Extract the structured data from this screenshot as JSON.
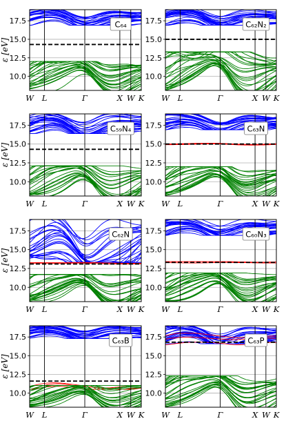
{
  "figure": {
    "ylabel": "ε [eV]"
  },
  "chart_data": [
    {
      "type": "line",
      "label": "C₆₄",
      "fermi": 14.3,
      "ylim": [
        8.1,
        19.0
      ],
      "yticks": [
        "10.0",
        "12.5",
        "15.0",
        "17.5"
      ],
      "high_symmetry": [
        "W",
        "L",
        "Γ",
        "X",
        "W",
        "K"
      ],
      "series": [
        {
          "color": "blue",
          "energy_range": [
            16.9,
            19.0
          ]
        },
        {
          "color": "green",
          "energy_range": [
            8.1,
            12.0
          ]
        }
      ]
    },
    {
      "type": "line",
      "label": "C₆₂N₂",
      "fermi": 15.0,
      "ylim": [
        8.1,
        19.0
      ],
      "yticks": [
        "10.0",
        "12.5",
        "15.0",
        "17.5"
      ],
      "high_symmetry": [
        "W",
        "L",
        "Γ",
        "X",
        "W",
        "K"
      ],
      "series": [
        {
          "color": "blue",
          "energy_range": [
            16.9,
            19.0
          ]
        },
        {
          "color": "green",
          "energy_range": [
            8.1,
            13.3
          ]
        }
      ]
    },
    {
      "type": "line",
      "label": "C₅₉N₄",
      "fermi": 14.3,
      "ylim": [
        8.1,
        19.0
      ],
      "yticks": [
        "10.0",
        "12.5",
        "15.0",
        "17.5"
      ],
      "high_symmetry": [
        "W",
        "L",
        "Γ",
        "X",
        "W",
        "K"
      ],
      "series": [
        {
          "color": "blue",
          "energy_range": [
            16.4,
            19.0
          ]
        },
        {
          "color": "green",
          "energy_range": [
            8.1,
            12.1
          ]
        }
      ]
    },
    {
      "type": "line",
      "label": "C₆₃N",
      "fermi": 15.0,
      "ylim": [
        8.1,
        19.0
      ],
      "yticks": [
        "10.0",
        "12.5",
        "15.0",
        "17.5"
      ],
      "high_symmetry": [
        "W",
        "L",
        "Γ",
        "X",
        "W",
        "K"
      ],
      "series": [
        {
          "color": "blue",
          "energy_range": [
            16.9,
            19.0
          ]
        },
        {
          "color": "red",
          "energy_range": [
            14.8,
            15.1
          ]
        },
        {
          "color": "green",
          "energy_range": [
            8.1,
            12.0
          ]
        }
      ]
    },
    {
      "type": "line",
      "label": "C₆₂N",
      "fermi": 13.1,
      "ylim": [
        8.1,
        19.0
      ],
      "yticks": [
        "10.0",
        "12.5",
        "15.0",
        "17.5"
      ],
      "high_symmetry": [
        "W",
        "L",
        "Γ",
        "X",
        "W",
        "K"
      ],
      "series": [
        {
          "color": "blue",
          "energy_range": [
            13.3,
            19.0
          ]
        },
        {
          "color": "red",
          "energy_range": [
            13.0,
            13.3
          ]
        },
        {
          "color": "green",
          "energy_range": [
            8.1,
            11.7
          ]
        }
      ]
    },
    {
      "type": "line",
      "label": "C₆₀N₃",
      "fermi": 13.3,
      "ylim": [
        8.1,
        19.0
      ],
      "yticks": [
        "10.0",
        "12.5",
        "15.0",
        "17.5"
      ],
      "high_symmetry": [
        "W",
        "L",
        "Γ",
        "X",
        "W",
        "K"
      ],
      "series": [
        {
          "color": "blue",
          "energy_range": [
            16.9,
            19.0
          ]
        },
        {
          "color": "red",
          "energy_range": [
            13.2,
            13.4
          ]
        },
        {
          "color": "green",
          "energy_range": [
            8.1,
            11.9
          ]
        }
      ]
    },
    {
      "type": "line",
      "label": "C₆₃B",
      "fermi": 11.6,
      "ylim": [
        8.1,
        19.0
      ],
      "yticks": [
        "10.0",
        "12.5",
        "15.0",
        "17.5"
      ],
      "high_symmetry": [
        "W",
        "L",
        "Γ",
        "X",
        "W",
        "K"
      ],
      "series": [
        {
          "color": "blue",
          "energy_range": [
            17.3,
            19.0
          ]
        },
        {
          "color": "red",
          "energy_range": [
            10.5,
            12.2
          ]
        },
        {
          "color": "green",
          "energy_range": [
            8.1,
            11.0
          ]
        }
      ]
    },
    {
      "type": "line",
      "label": "C₆₃P",
      "fermi": 16.8,
      "ylim": [
        8.1,
        19.0
      ],
      "yticks": [
        "10.0",
        "12.5",
        "15.0",
        "17.5"
      ],
      "high_symmetry": [
        "W",
        "L",
        "Γ",
        "X",
        "W",
        "K"
      ],
      "series": [
        {
          "color": "blue",
          "energy_range": [
            16.6,
            19.0
          ]
        },
        {
          "color": "red",
          "energy_range": [
            16.4,
            18.0
          ]
        },
        {
          "color": "green",
          "energy_range": [
            8.1,
            12.3
          ]
        }
      ]
    }
  ]
}
